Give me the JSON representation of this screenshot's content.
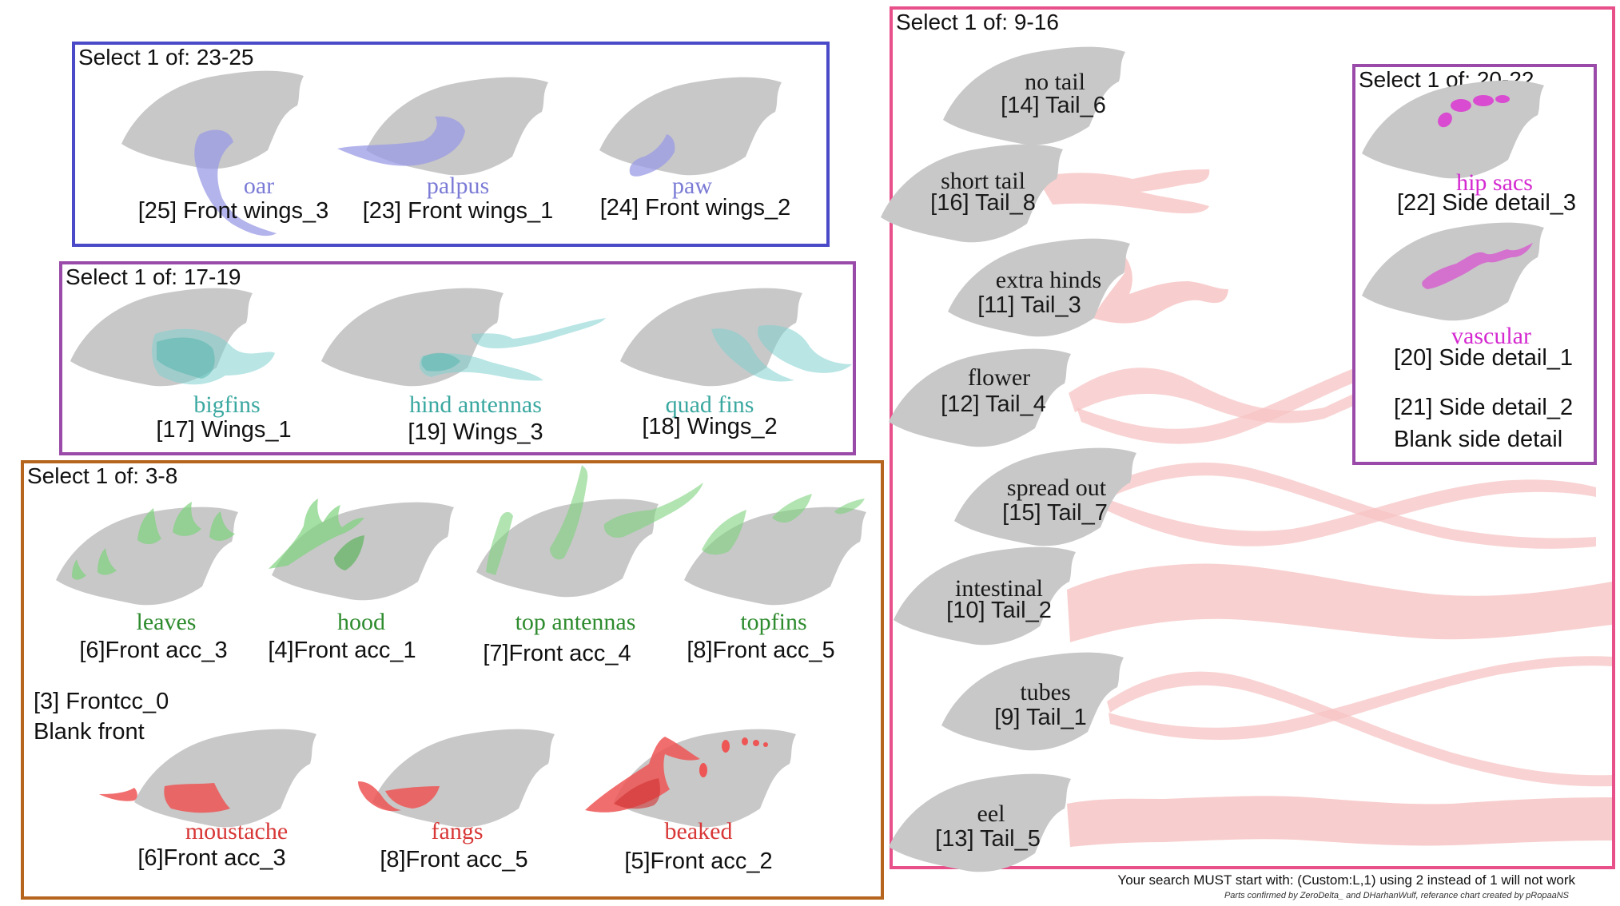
{
  "colors": {
    "body_gray": "#c8c8c8",
    "front_wings_blue": "#9b9be6",
    "wings_teal": "#7fd0d0",
    "front_acc_green": "#7ed27e",
    "front_acc_red": "#ee5555",
    "tail_pink": "#f7c4c4",
    "side_detail_magenta": "#d94bd0",
    "box_blue": "#4a4ac8",
    "box_purple": "#9a4aa8",
    "box_orange": "#b5651d",
    "box_pink": "#e8508a",
    "label_blue": "#7b7bd6",
    "label_teal": "#3aa8a0",
    "label_green": "#2e8b2e",
    "label_red": "#d83838",
    "label_magenta": "#d42ad0"
  },
  "front_wings": {
    "title": "Select 1 of: 23-25",
    "items": [
      {
        "name": "oar",
        "code": "[25] Front wings_3"
      },
      {
        "name": "palpus",
        "code": "[23] Front wings_1"
      },
      {
        "name": "paw",
        "code": "[24] Front wings_2"
      }
    ]
  },
  "wings": {
    "title": "Select 1 of: 17-19",
    "items": [
      {
        "name": "bigfins",
        "code": "[17] Wings_1"
      },
      {
        "name": "hind antennas",
        "code": "[19] Wings_3"
      },
      {
        "name": "quad fins",
        "code": "[18] Wings_2"
      }
    ]
  },
  "front_acc": {
    "title": "Select 1 of: 3-8",
    "green_items": [
      {
        "name": "leaves",
        "code": "[6]Front acc_3"
      },
      {
        "name": "hood",
        "code": "[4]Front acc_1"
      },
      {
        "name": "top antennas",
        "code": "[7]Front acc_4"
      },
      {
        "name": "topfins",
        "code": "[8]Front acc_5"
      }
    ],
    "blank_code": "[3] Frontcc_0",
    "blank_text": "Blank front",
    "red_items": [
      {
        "name": "moustache",
        "code": "[6]Front acc_3"
      },
      {
        "name": "fangs",
        "code": "[8]Front acc_5"
      },
      {
        "name": "beaked",
        "code": "[5]Front acc_2"
      }
    ]
  },
  "tails": {
    "title": "Select 1 of: 9-16",
    "items": [
      {
        "name": "no tail",
        "code": "[14] Tail_6"
      },
      {
        "name": "short tail",
        "code": "[16] Tail_8"
      },
      {
        "name": "extra hinds",
        "code": "[11] Tail_3"
      },
      {
        "name": "flower",
        "code": "[12] Tail_4"
      },
      {
        "name": "spread out",
        "code": "[15] Tail_7"
      },
      {
        "name": "intestinal",
        "code": "[10] Tail_2"
      },
      {
        "name": "tubes",
        "code": "[9] Tail_1"
      },
      {
        "name": "eel",
        "code": "[13] Tail_5"
      }
    ]
  },
  "side_detail": {
    "title": "Select 1 of: 20-22",
    "items": [
      {
        "name": "hip sacs",
        "code": "[22] Side detail_3"
      },
      {
        "name": "vascular",
        "code": "[20] Side detail_1"
      }
    ],
    "blank_code": "[21] Side detail_2",
    "blank_text": "Blank side detail"
  },
  "footer": {
    "main": "Your search MUST start with: (Custom:L,1) using 2 instead of 1 will not work",
    "credit": "Parts confirmed by ZeroDelta_ and DHarhanWulf, referance chart created by pRopaaNS"
  }
}
